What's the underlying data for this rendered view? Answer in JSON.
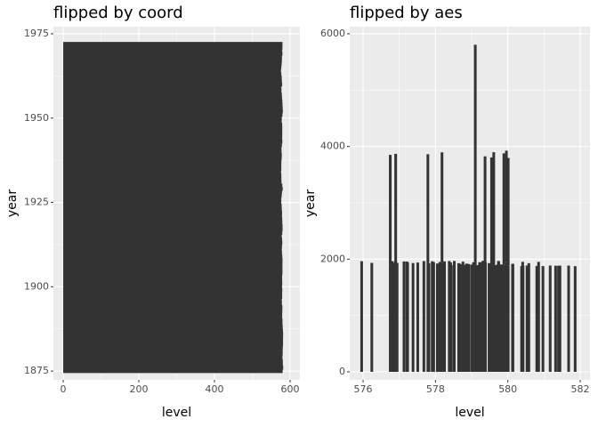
{
  "chart_data": [
    {
      "type": "bar",
      "orientation": "horizontal",
      "title": "flipped by coord",
      "xlabel": "level",
      "ylabel": "year",
      "color": "#333333",
      "y": [
        1875,
        1876,
        1877,
        1878,
        1879,
        1880,
        1881,
        1882,
        1883,
        1884,
        1885,
        1886,
        1887,
        1888,
        1889,
        1890,
        1891,
        1892,
        1893,
        1894,
        1895,
        1896,
        1897,
        1898,
        1899,
        1900,
        1901,
        1902,
        1903,
        1904,
        1905,
        1906,
        1907,
        1908,
        1909,
        1910,
        1911,
        1912,
        1913,
        1914,
        1915,
        1916,
        1917,
        1918,
        1919,
        1920,
        1921,
        1922,
        1923,
        1924,
        1925,
        1926,
        1927,
        1928,
        1929,
        1930,
        1931,
        1932,
        1933,
        1934,
        1935,
        1936,
        1937,
        1938,
        1939,
        1940,
        1941,
        1942,
        1943,
        1944,
        1945,
        1946,
        1947,
        1948,
        1949,
        1950,
        1951,
        1952,
        1953,
        1954,
        1955,
        1956,
        1957,
        1958,
        1959,
        1960,
        1961,
        1962,
        1963,
        1964,
        1965,
        1966,
        1967,
        1968,
        1969,
        1970,
        1971,
        1972
      ],
      "values": [
        580.38,
        581.86,
        580.97,
        580.8,
        579.79,
        580.39,
        580.42,
        580.82,
        581.4,
        581.32,
        581.44,
        581.68,
        581.17,
        580.53,
        580.01,
        579.91,
        579.14,
        579.16,
        579.55,
        579.67,
        578.44,
        578.24,
        579.1,
        579.09,
        579.35,
        578.82,
        579.32,
        579.01,
        579.0,
        579.8,
        579.83,
        579.72,
        579.89,
        580.01,
        579.37,
        578.69,
        578.19,
        578.67,
        579.55,
        578.92,
        578.09,
        579.37,
        580.13,
        580.14,
        579.51,
        579.24,
        578.66,
        578.86,
        578.05,
        577.79,
        576.75,
        576.75,
        577.82,
        578.64,
        580.58,
        579.48,
        577.38,
        576.9,
        576.94,
        576.24,
        576.84,
        576.85,
        576.9,
        577.79,
        578.18,
        577.51,
        577.23,
        578.42,
        579.61,
        579.05,
        579.26,
        579.22,
        579.38,
        579.1,
        577.95,
        578.12,
        579.75,
        580.85,
        580.41,
        579.96,
        579.61,
        578.76,
        578.18,
        577.21,
        577.13,
        579.1,
        578.25,
        577.91,
        576.89,
        575.96,
        576.8,
        577.68,
        578.38,
        578.52,
        579.74,
        579.31,
        579.89,
        579.96
      ],
      "xlim": [
        -26,
        626
      ],
      "xticks": [
        0,
        200,
        400,
        600
      ],
      "ylim": [
        1872.4,
        1977.1
      ],
      "yticks": [
        1875,
        1900,
        1925,
        1950,
        1975
      ],
      "grid": true
    },
    {
      "type": "bar",
      "orientation": "vertical",
      "title": "flipped by aes",
      "xlabel": "level",
      "ylabel": "year",
      "color": "#333333",
      "x": [
        580.38,
        581.86,
        580.97,
        580.8,
        579.79,
        580.39,
        580.42,
        580.82,
        581.4,
        581.32,
        581.44,
        581.68,
        581.17,
        580.53,
        580.01,
        579.91,
        579.14,
        579.16,
        579.55,
        579.67,
        578.44,
        578.24,
        579.1,
        579.09,
        579.35,
        578.82,
        579.32,
        579.01,
        579.0,
        579.8,
        579.83,
        579.72,
        579.89,
        580.01,
        579.37,
        578.69,
        578.19,
        578.67,
        579.55,
        578.92,
        578.09,
        579.37,
        580.13,
        580.14,
        579.51,
        579.24,
        578.66,
        578.86,
        578.05,
        577.79,
        576.75,
        576.75,
        577.82,
        578.64,
        580.58,
        579.48,
        577.38,
        576.9,
        576.94,
        576.24,
        576.84,
        576.85,
        576.9,
        577.79,
        578.18,
        577.51,
        577.23,
        578.42,
        579.61,
        579.05,
        579.26,
        579.22,
        579.38,
        579.1,
        577.95,
        578.12,
        579.75,
        580.85,
        580.41,
        579.96,
        579.61,
        578.76,
        578.18,
        577.21,
        577.13,
        579.1,
        578.25,
        577.91,
        576.89,
        575.96,
        576.8,
        577.68,
        578.38,
        578.52,
        579.74,
        579.31,
        579.89,
        579.96
      ],
      "values": [
        1875,
        1876,
        1877,
        1878,
        1879,
        1880,
        1881,
        1882,
        1883,
        1884,
        1885,
        1886,
        1887,
        1888,
        1889,
        1890,
        1891,
        1892,
        1893,
        1894,
        1895,
        1896,
        1897,
        1898,
        1899,
        1900,
        1901,
        1902,
        1903,
        1904,
        1905,
        1906,
        1907,
        1908,
        1909,
        1910,
        1911,
        1912,
        1913,
        1914,
        1915,
        1916,
        1917,
        1918,
        1919,
        1920,
        1921,
        1922,
        1923,
        1924,
        1925,
        1926,
        1927,
        1928,
        1929,
        1930,
        1931,
        1932,
        1933,
        1934,
        1935,
        1936,
        1937,
        1938,
        1939,
        1940,
        1941,
        1942,
        1943,
        1944,
        1945,
        1946,
        1947,
        1948,
        1949,
        1950,
        1951,
        1952,
        1953,
        1954,
        1955,
        1956,
        1957,
        1958,
        1959,
        1960,
        1961,
        1962,
        1963,
        1964,
        1965,
        1966,
        1967,
        1968,
        1969,
        1970,
        1971,
        1972
      ],
      "xlim": [
        575.63,
        582.27
      ],
      "xticks": [
        576,
        578,
        580,
        582
      ],
      "ylim": [
        -142,
        6126
      ],
      "yticks": [
        0,
        2000,
        4000,
        6000
      ],
      "grid": true
    }
  ]
}
